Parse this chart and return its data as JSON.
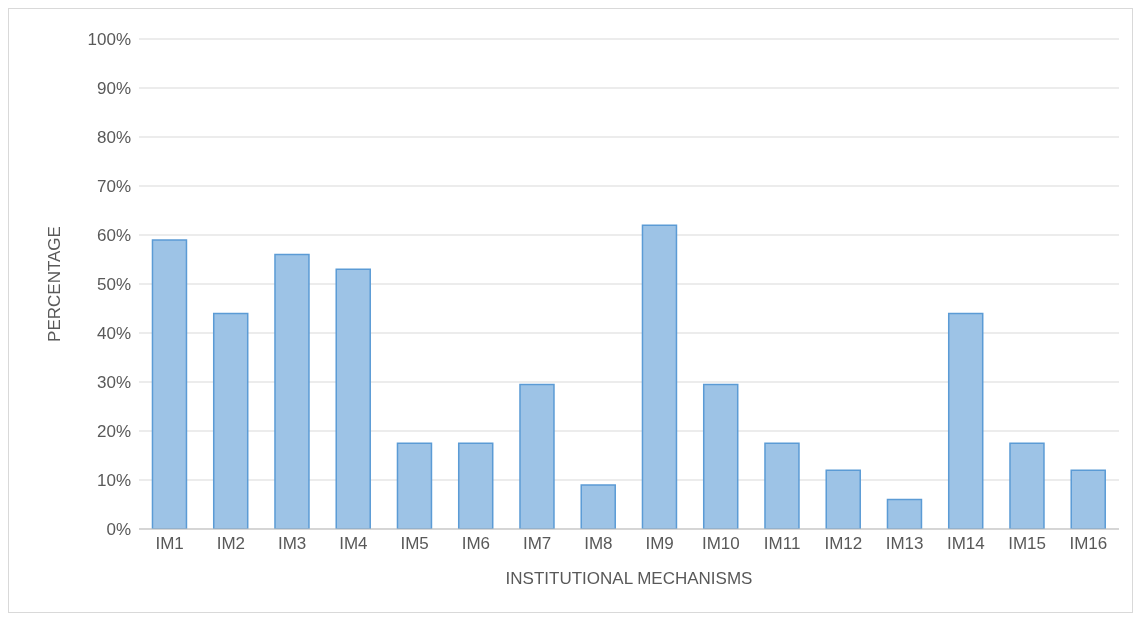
{
  "chart_data": {
    "type": "bar",
    "xlabel": "INSTITUTIONAL MECHANISMS",
    "ylabel": "PERCENTAGE",
    "categories": [
      "IM1",
      "IM2",
      "IM3",
      "IM4",
      "IM5",
      "IM6",
      "IM7",
      "IM8",
      "IM9",
      "IM10",
      "IM11",
      "IM12",
      "IM13",
      "IM14",
      "IM15",
      "IM16"
    ],
    "values": [
      59,
      44,
      56,
      53,
      17.5,
      17.5,
      29.5,
      9,
      62,
      29.5,
      17.5,
      12,
      6,
      44,
      17.5,
      12
    ],
    "color": "#9dc3e6",
    "ylim": [
      0,
      100
    ],
    "yticks": [
      {
        "value": 0,
        "label": "0%"
      },
      {
        "value": 10,
        "label": "10%"
      },
      {
        "value": 20,
        "label": "20%"
      },
      {
        "value": 30,
        "label": "30%"
      },
      {
        "value": 40,
        "label": "40%"
      },
      {
        "value": 50,
        "label": "50%"
      },
      {
        "value": 60,
        "label": "60%"
      },
      {
        "value": 70,
        "label": "70%"
      },
      {
        "value": 80,
        "label": "80%"
      },
      {
        "value": 90,
        "label": "90%"
      },
      {
        "value": 100,
        "label": "100%"
      }
    ],
    "grid": "y",
    "legend": false
  }
}
